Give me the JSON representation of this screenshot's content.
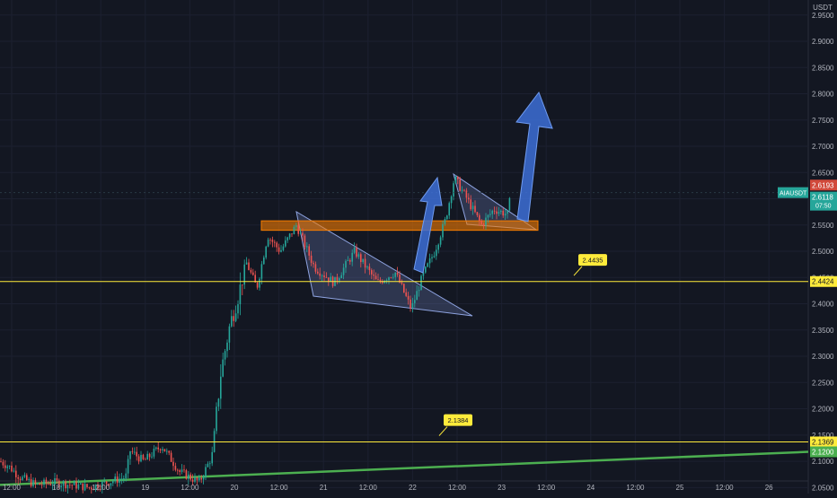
{
  "chart_data": {
    "type": "candlestick",
    "currency_label": "USDT",
    "y_ticks": [
      "2.9500",
      "2.9000",
      "2.8500",
      "2.8000",
      "2.7500",
      "2.7000",
      "2.6500",
      "2.6000",
      "2.5500",
      "2.5000",
      "2.4500",
      "2.4000",
      "2.3500",
      "2.3000",
      "2.2500",
      "2.2000",
      "2.1500",
      "2.1000",
      "2.0500"
    ],
    "x_ticks": [
      "12:00",
      "18",
      "12:00",
      "19",
      "12:00",
      "20",
      "12:00",
      "21",
      "12:00",
      "22",
      "12:00",
      "23",
      "12:00",
      "24",
      "12:00",
      "25",
      "12:00",
      "26"
    ],
    "ylim": [
      2.042,
      2.965
    ],
    "price_badges": {
      "high": {
        "value": "2.6193",
        "color": "#d1493b"
      },
      "last": {
        "value": "2.6118",
        "color": "#26a69a"
      },
      "countdown": {
        "value": "07:50",
        "color": "#26a69a"
      },
      "symbol": {
        "value": "AIAUSDT",
        "color": "#26a69a"
      },
      "upper_line": {
        "value": "2.4424",
        "color": "#ffeb3b"
      },
      "lower_line": {
        "value": "2.1369",
        "color": "#ffeb3b"
      },
      "trend": {
        "value": "2.1200",
        "color": "#4caf50"
      }
    },
    "horizontal_lines": [
      {
        "price": 2.4424,
        "color": "#ffeb3b"
      },
      {
        "price": 2.1369,
        "color": "#ffeb3b"
      }
    ],
    "callouts": [
      {
        "label": "2.4435",
        "price": 2.4435
      },
      {
        "label": "2.1384",
        "price": 2.1384
      }
    ],
    "resistance_zone": {
      "top": 2.558,
      "bottom": 2.54,
      "color": "#f57c00"
    },
    "trendline_start_price": 2.055,
    "trendline_end_price": 2.118,
    "trendline_color": "#4caf50",
    "candle_colors": {
      "up": "#26a69a",
      "down": "#ef5350"
    },
    "pattern_fill": "#6c7fb8",
    "arrow_color": "#3d6fd6",
    "current_price_line": 2.6118
  }
}
